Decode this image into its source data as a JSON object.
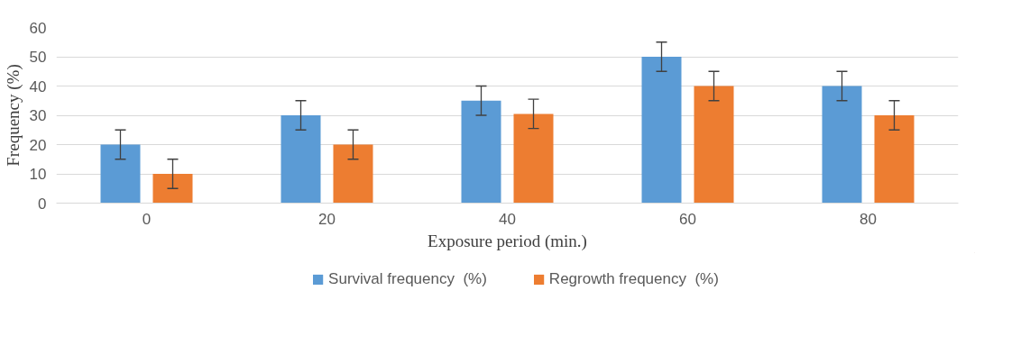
{
  "chart_data": {
    "type": "bar",
    "xlabel": "Exposure period (min.)",
    "ylabel": "Frequency (%)",
    "categories": [
      "0",
      "20",
      "40",
      "60",
      "80"
    ],
    "series": [
      {
        "name": "Survival frequency  (%)",
        "color": "#5b9bd5",
        "values": [
          20,
          30,
          35,
          50,
          40
        ],
        "errors": [
          5,
          5,
          5,
          5,
          5
        ]
      },
      {
        "name": "Regrowth frequency  (%)",
        "color": "#ed7d31",
        "values": [
          10,
          20,
          30.5,
          40,
          30
        ],
        "errors": [
          5,
          5,
          5,
          5,
          5
        ]
      }
    ],
    "ylim": [
      0,
      60
    ],
    "yticks": [
      0,
      10,
      20,
      30,
      40,
      50,
      60
    ],
    "grid": "y",
    "legend": "bottom"
  }
}
